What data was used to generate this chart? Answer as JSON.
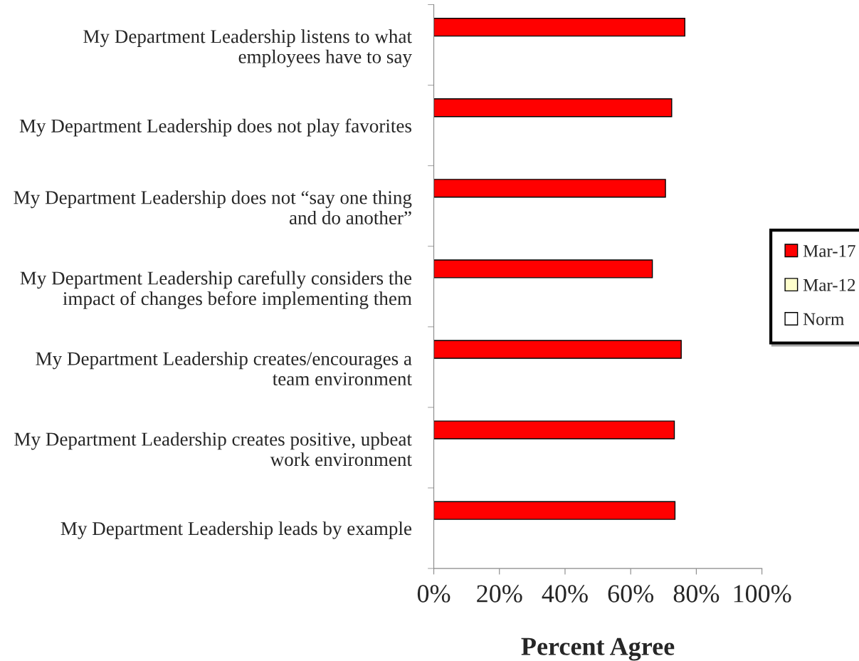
{
  "chart_data": {
    "type": "bar",
    "orientation": "horizontal",
    "xlabel": "Percent Agree",
    "categories": [
      "My Department Leadership listens to what employees have to say",
      "My Department Leadership does not play favorites",
      "My Department Leadership does not “say one thing and do another”",
      "My Department Leadership carefully considers the impact of changes before implementing them",
      "My Department Leadership creates/encourages a team environment",
      "My Department Leadership creates positive, upbeat work environment",
      "My Department Leadership leads by example"
    ],
    "series": [
      {
        "name": "Mar-17",
        "color": "#ff0000",
        "values": [
          76.5,
          72.5,
          70.6,
          66.6,
          75.4,
          73.3,
          73.5
        ]
      },
      {
        "name": "Mar-12",
        "color": "#ffffcc",
        "values": [
          null,
          null,
          null,
          null,
          null,
          null,
          null
        ]
      },
      {
        "name": "Norm",
        "color": "#ffffff",
        "values": [
          null,
          null,
          null,
          null,
          null,
          null,
          null
        ]
      }
    ],
    "xlim": [
      0,
      100
    ],
    "xticks": [
      {
        "value": 0,
        "label": "0%"
      },
      {
        "value": 20,
        "label": "20%"
      },
      {
        "value": 40,
        "label": "40%"
      },
      {
        "value": 60,
        "label": "60%"
      },
      {
        "value": 80,
        "label": "80%"
      },
      {
        "value": 100,
        "label": "100%"
      }
    ],
    "grid": false,
    "legend": "right"
  }
}
